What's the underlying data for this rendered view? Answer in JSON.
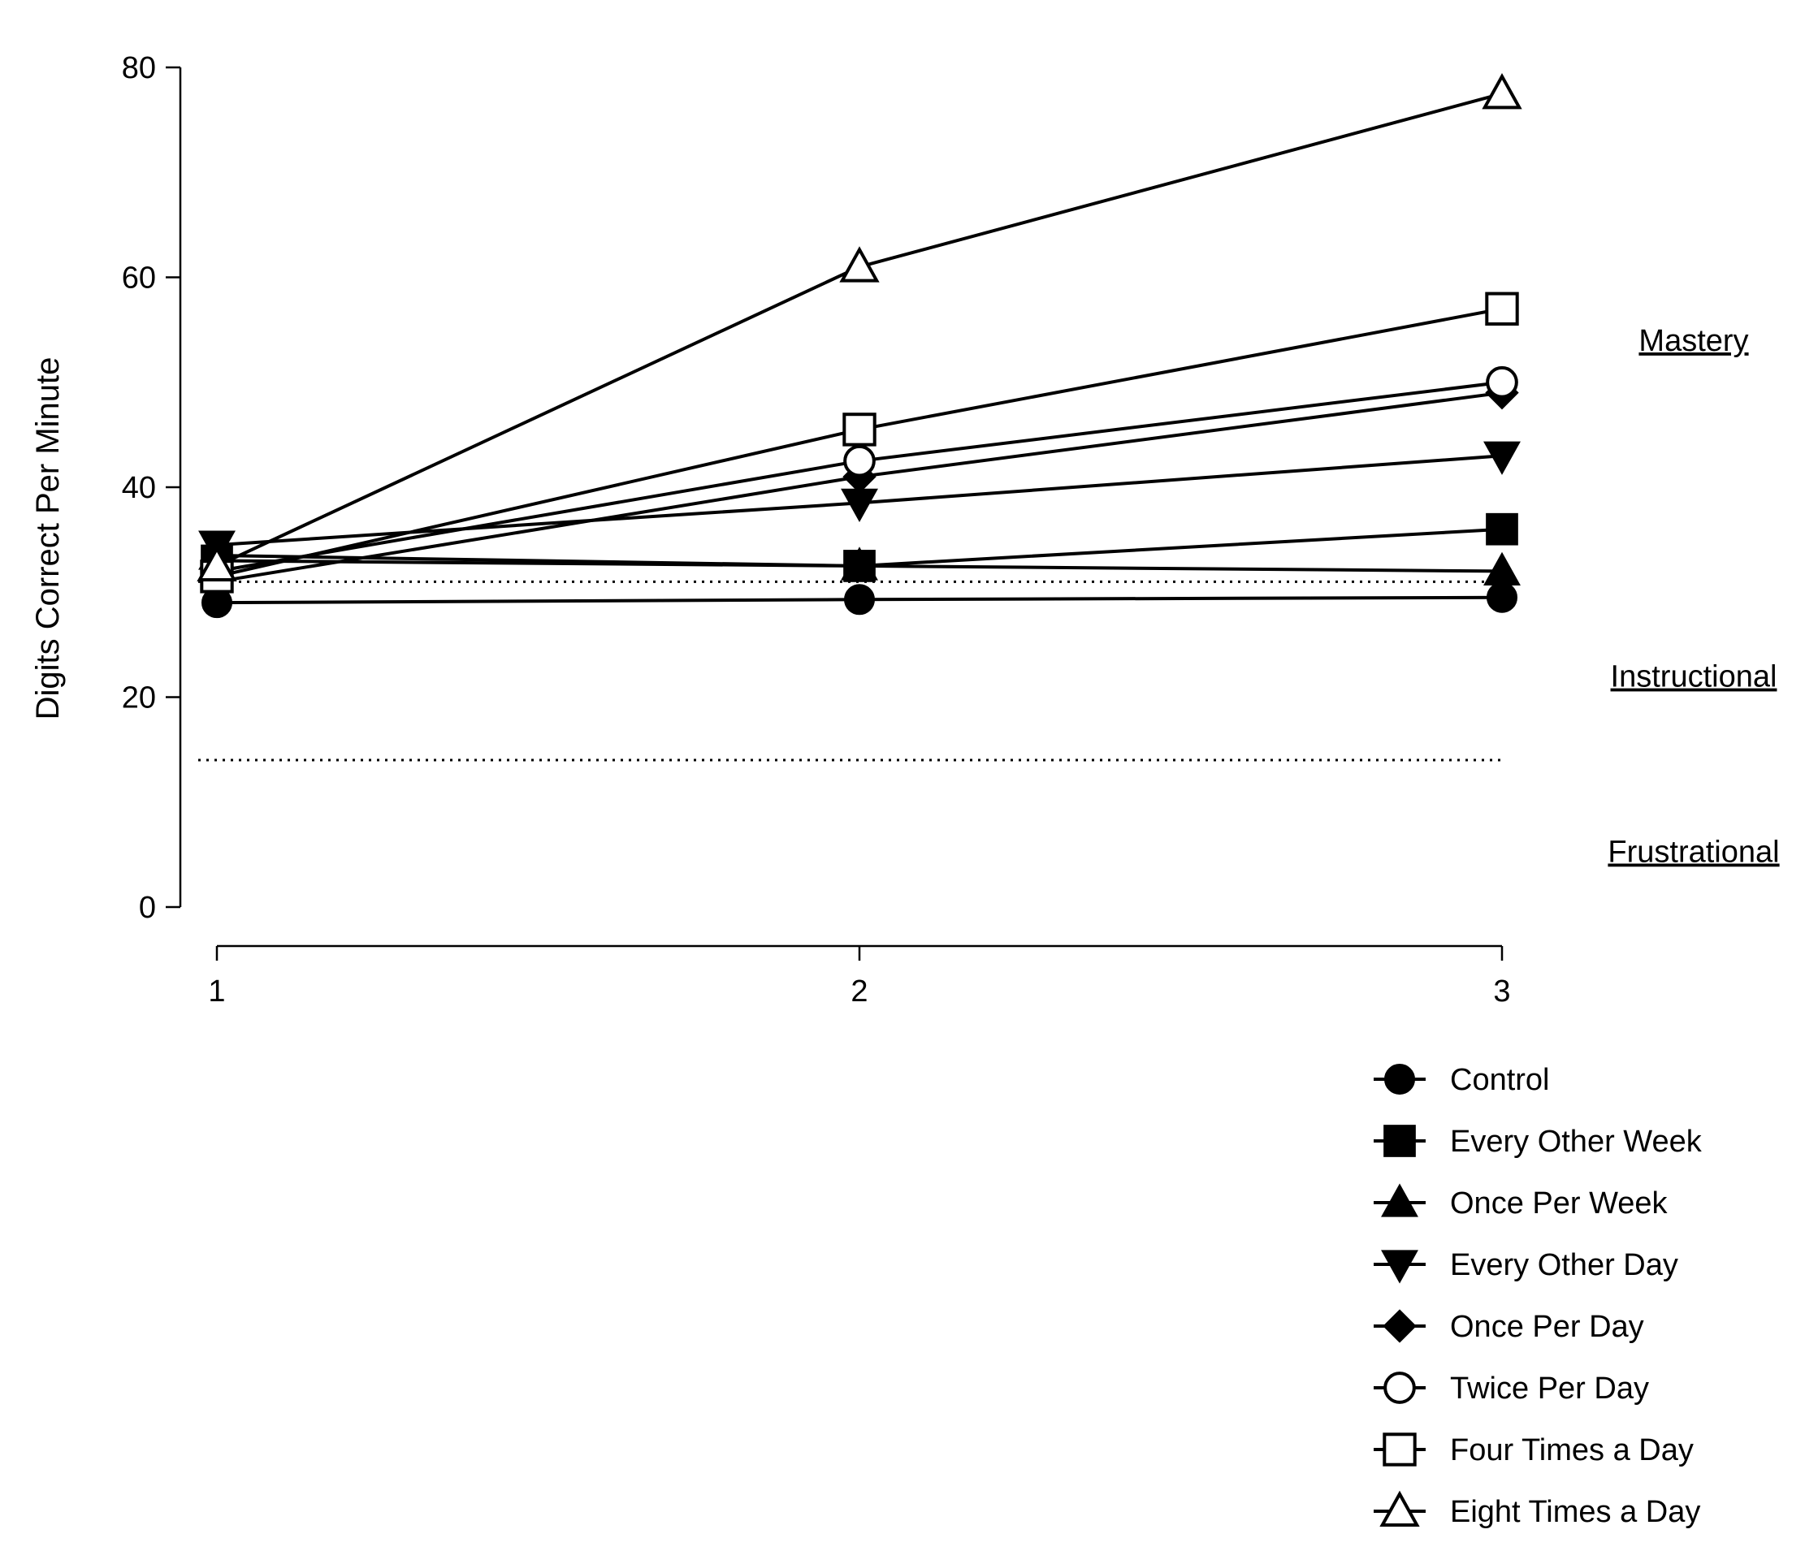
{
  "chart_data": {
    "type": "line",
    "title": "",
    "xlabel": "",
    "ylabel": "Digits Correct Per Minute",
    "x": [
      1,
      2,
      3
    ],
    "xticks": [
      "1",
      "2",
      "3"
    ],
    "yticks": [
      "0",
      "20",
      "40",
      "60",
      "80"
    ],
    "ylim": [
      0,
      80
    ],
    "xlim": [
      1,
      3
    ],
    "grid": false,
    "legend_position": "bottom-right",
    "reference_lines": [
      {
        "y": 31,
        "style": "dotted"
      },
      {
        "y": 14,
        "style": "dotted"
      }
    ],
    "zones": [
      {
        "label": "Mastery",
        "y": 54
      },
      {
        "label": "Instructional",
        "y": 22
      },
      {
        "label": "Frustrational",
        "y": 5.3
      }
    ],
    "series": [
      {
        "name": "Control",
        "marker": "circle-filled",
        "values": [
          29,
          29.3,
          29.5
        ]
      },
      {
        "name": "Every Other Week",
        "marker": "square-filled",
        "values": [
          33,
          32.5,
          36
        ]
      },
      {
        "name": "Once Per Week",
        "marker": "triangle-up-filled",
        "values": [
          33.5,
          32.5,
          32
        ]
      },
      {
        "name": "Every Other Day",
        "marker": "triangle-down-filled",
        "values": [
          34.5,
          38.5,
          43
        ]
      },
      {
        "name": "Once Per Day",
        "marker": "diamond-filled",
        "values": [
          31,
          41,
          49
        ]
      },
      {
        "name": "Twice Per Day",
        "marker": "circle-open",
        "values": [
          32,
          42.5,
          50
        ]
      },
      {
        "name": "Four Times a Day",
        "marker": "square-open",
        "values": [
          31.5,
          45.5,
          57
        ]
      },
      {
        "name": "Eight Times a Day",
        "marker": "triangle-up-open",
        "values": [
          32.5,
          61,
          77.5
        ]
      }
    ]
  }
}
